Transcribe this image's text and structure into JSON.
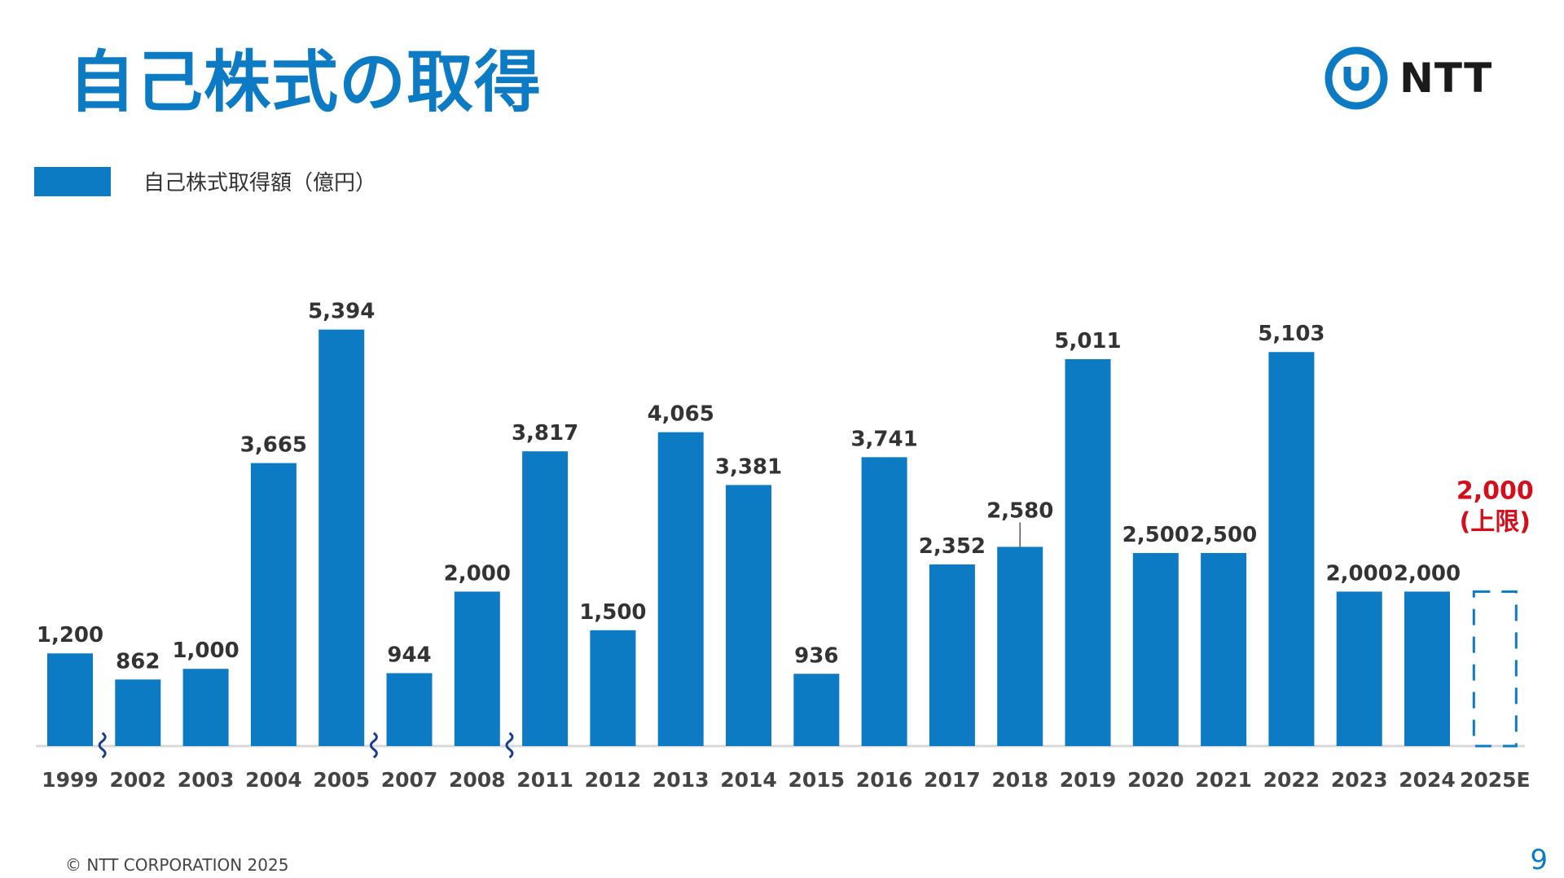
{
  "slide": {
    "title": "自己株式の取得",
    "logo_text": "NTT",
    "footer": "© NTT CORPORATION 2025",
    "page_number": "9"
  },
  "colors": {
    "bar": "#0c7bc4",
    "accent_red": "#d40f1b",
    "text": "#333333",
    "axis": "#d8d8d8",
    "break_mark": "#1a3d8f"
  },
  "chart_data": {
    "type": "bar",
    "title": "",
    "legend": [
      "自己株式取得額（億円）"
    ],
    "categories": [
      "1999",
      "2002",
      "2003",
      "2004",
      "2005",
      "2007",
      "2008",
      "2011",
      "2012",
      "2013",
      "2014",
      "2015",
      "2016",
      "2017",
      "2018",
      "2019",
      "2020",
      "2021",
      "2022",
      "2023",
      "2024",
      "2025E"
    ],
    "values": [
      1200,
      862,
      1000,
      3665,
      5394,
      944,
      2000,
      3817,
      1500,
      4065,
      3381,
      936,
      3741,
      2352,
      2580,
      5011,
      2500,
      2500,
      5103,
      2000,
      2000,
      2000
    ],
    "labels": [
      "1,200",
      "862",
      "1,000",
      "3,665",
      "5,394",
      "944",
      "2,000",
      "3,817",
      "1,500",
      "4,065",
      "3,381",
      "936",
      "3,741",
      "2,352",
      "2,580",
      "5,011",
      "2,500",
      "2,500",
      "5,103",
      "2,000",
      "2,000",
      "2,000"
    ],
    "estimate_index": 21,
    "estimate_note": "(上限)",
    "axis_breaks_after": [
      "1999",
      "2005",
      "2008"
    ],
    "ylim": [
      0,
      5600
    ],
    "xlabel": "",
    "ylabel": ""
  }
}
